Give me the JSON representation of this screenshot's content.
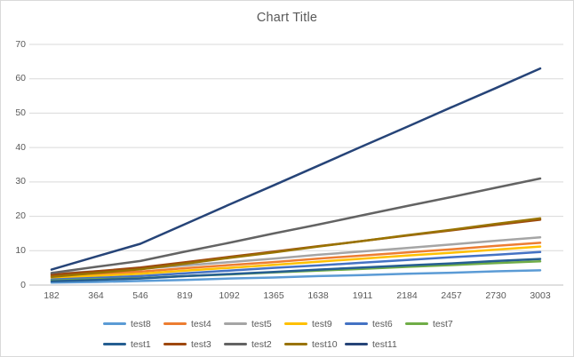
{
  "window": {
    "background": "#ffffff",
    "border_color": "#d9d9d9"
  },
  "chart_data": {
    "type": "line",
    "title": "Chart Title",
    "title_color": "#595959",
    "axis_label_color": "#595959",
    "gridline_color": "#d9d9d9",
    "axis_line_color": "#bfbfbf",
    "grid": true,
    "legend_position": "bottom",
    "categories": [
      182,
      364,
      546,
      819,
      1092,
      1365,
      1638,
      1911,
      2184,
      2457,
      2730,
      3003
    ],
    "y_ticks": [
      0,
      10,
      20,
      30,
      40,
      50,
      60,
      70
    ],
    "ylim": [
      0,
      70
    ],
    "series": [
      {
        "name": "test8",
        "color": "#5B9BD5",
        "values": [
          0.7,
          0.9,
          1.2,
          1.5,
          1.9,
          2.2,
          2.6,
          2.9,
          3.3,
          3.6,
          4.0,
          4.3
        ]
      },
      {
        "name": "test4",
        "color": "#ED7D31",
        "values": [
          2.7,
          3.3,
          3.9,
          4.9,
          5.8,
          6.7,
          7.7,
          8.6,
          9.5,
          10.4,
          11.4,
          12.3
        ]
      },
      {
        "name": "test5",
        "color": "#A5A5A5",
        "values": [
          3.3,
          4.0,
          4.7,
          5.7,
          6.7,
          7.7,
          8.8,
          9.8,
          10.8,
          11.8,
          12.9,
          13.9
        ]
      },
      {
        "name": "test9",
        "color": "#FFC000",
        "values": [
          2.1,
          2.7,
          3.3,
          4.2,
          5.0,
          5.9,
          6.8,
          7.7,
          8.6,
          9.4,
          10.3,
          11.2
        ]
      },
      {
        "name": "test6",
        "color": "#4472C4",
        "values": [
          1.6,
          2.1,
          2.6,
          3.4,
          4.2,
          5.0,
          5.7,
          6.5,
          7.3,
          8.1,
          8.8,
          9.6
        ]
      },
      {
        "name": "test7",
        "color": "#70AD47",
        "values": [
          1.3,
          1.7,
          2.0,
          2.6,
          3.1,
          3.7,
          4.2,
          4.7,
          5.3,
          5.8,
          6.4,
          6.9
        ]
      },
      {
        "name": "test1",
        "color": "#255E91",
        "values": [
          1.1,
          1.5,
          1.9,
          2.6,
          3.2,
          3.8,
          4.5,
          5.1,
          5.7,
          6.3,
          7.0,
          7.6
        ]
      },
      {
        "name": "test3",
        "color": "#9E480E",
        "values": [
          3.0,
          4.0,
          5.1,
          6.6,
          8.2,
          9.7,
          11.3,
          12.8,
          14.4,
          15.9,
          17.5,
          19.0
        ]
      },
      {
        "name": "test2",
        "color": "#636363",
        "values": [
          3.5,
          5.3,
          7.0,
          9.7,
          12.3,
          15.0,
          17.6,
          20.3,
          23.0,
          25.6,
          28.3,
          31.0
        ]
      },
      {
        "name": "test10",
        "color": "#997300",
        "values": [
          2.4,
          3.5,
          4.6,
          6.2,
          7.9,
          9.5,
          11.2,
          12.8,
          14.5,
          16.1,
          17.8,
          19.4
        ]
      },
      {
        "name": "test11",
        "color": "#264478",
        "values": [
          4.5,
          8.3,
          12.0,
          17.7,
          23.4,
          29.0,
          34.7,
          40.4,
          46.0,
          51.7,
          57.3,
          63.0
        ]
      }
    ]
  }
}
